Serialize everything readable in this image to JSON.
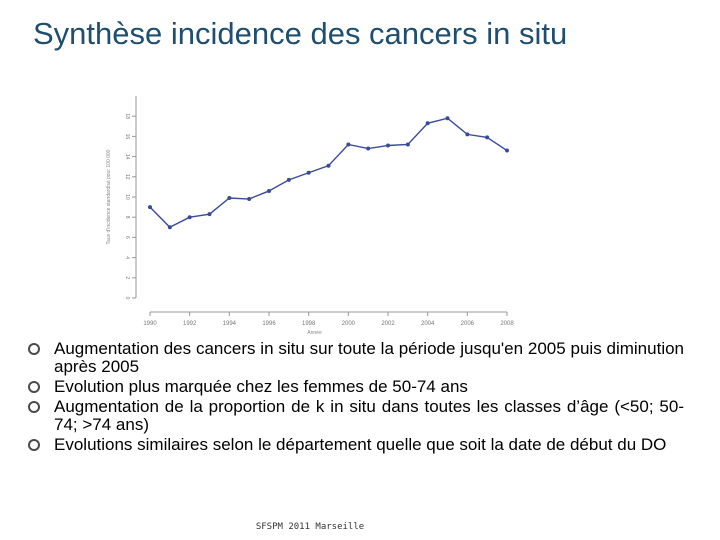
{
  "slide": {
    "title": "Synthèse incidence des cancers in situ",
    "footer": "SFSPM 2011 Marseille"
  },
  "bullets": [
    "Augmentation des cancers in situ sur toute la période jusqu'en 2005 puis diminution après 2005",
    "Evolution plus marquée chez les femmes de 50-74 ans",
    "Augmentation de la proportion de k in situ dans toutes les classes d’âge (<50; 50-74; >74 ans)",
    "Evolutions similaires selon le département quelle que soit la date de début du DO"
  ],
  "chart_data": {
    "type": "line",
    "x": [
      1990,
      1991,
      1992,
      1993,
      1994,
      1995,
      1996,
      1997,
      1998,
      1999,
      2000,
      2001,
      2002,
      2003,
      2004,
      2005,
      2006,
      2007,
      2008
    ],
    "y": [
      9.0,
      7.0,
      8.0,
      8.3,
      9.9,
      9.8,
      10.6,
      11.7,
      12.4,
      13.1,
      15.2,
      14.8,
      15.1,
      15.2,
      17.3,
      17.8,
      16.2,
      15.9,
      14.6
    ],
    "xticks": [
      "1990",
      "1992",
      "1994",
      "1996",
      "1998",
      "2000",
      "2002",
      "2004",
      "2006",
      "2008"
    ],
    "yticks": [
      "0",
      "2",
      "4",
      "6",
      "8",
      "10",
      "12",
      "14",
      "16",
      "18"
    ],
    "xlim": [
      1990,
      2008
    ],
    "ylim": [
      0,
      20
    ],
    "xlabel": "Année",
    "ylabel": "Taux d'incidence standardisé pour 100 000",
    "line_color": "#3a4a9a",
    "grid": false
  }
}
